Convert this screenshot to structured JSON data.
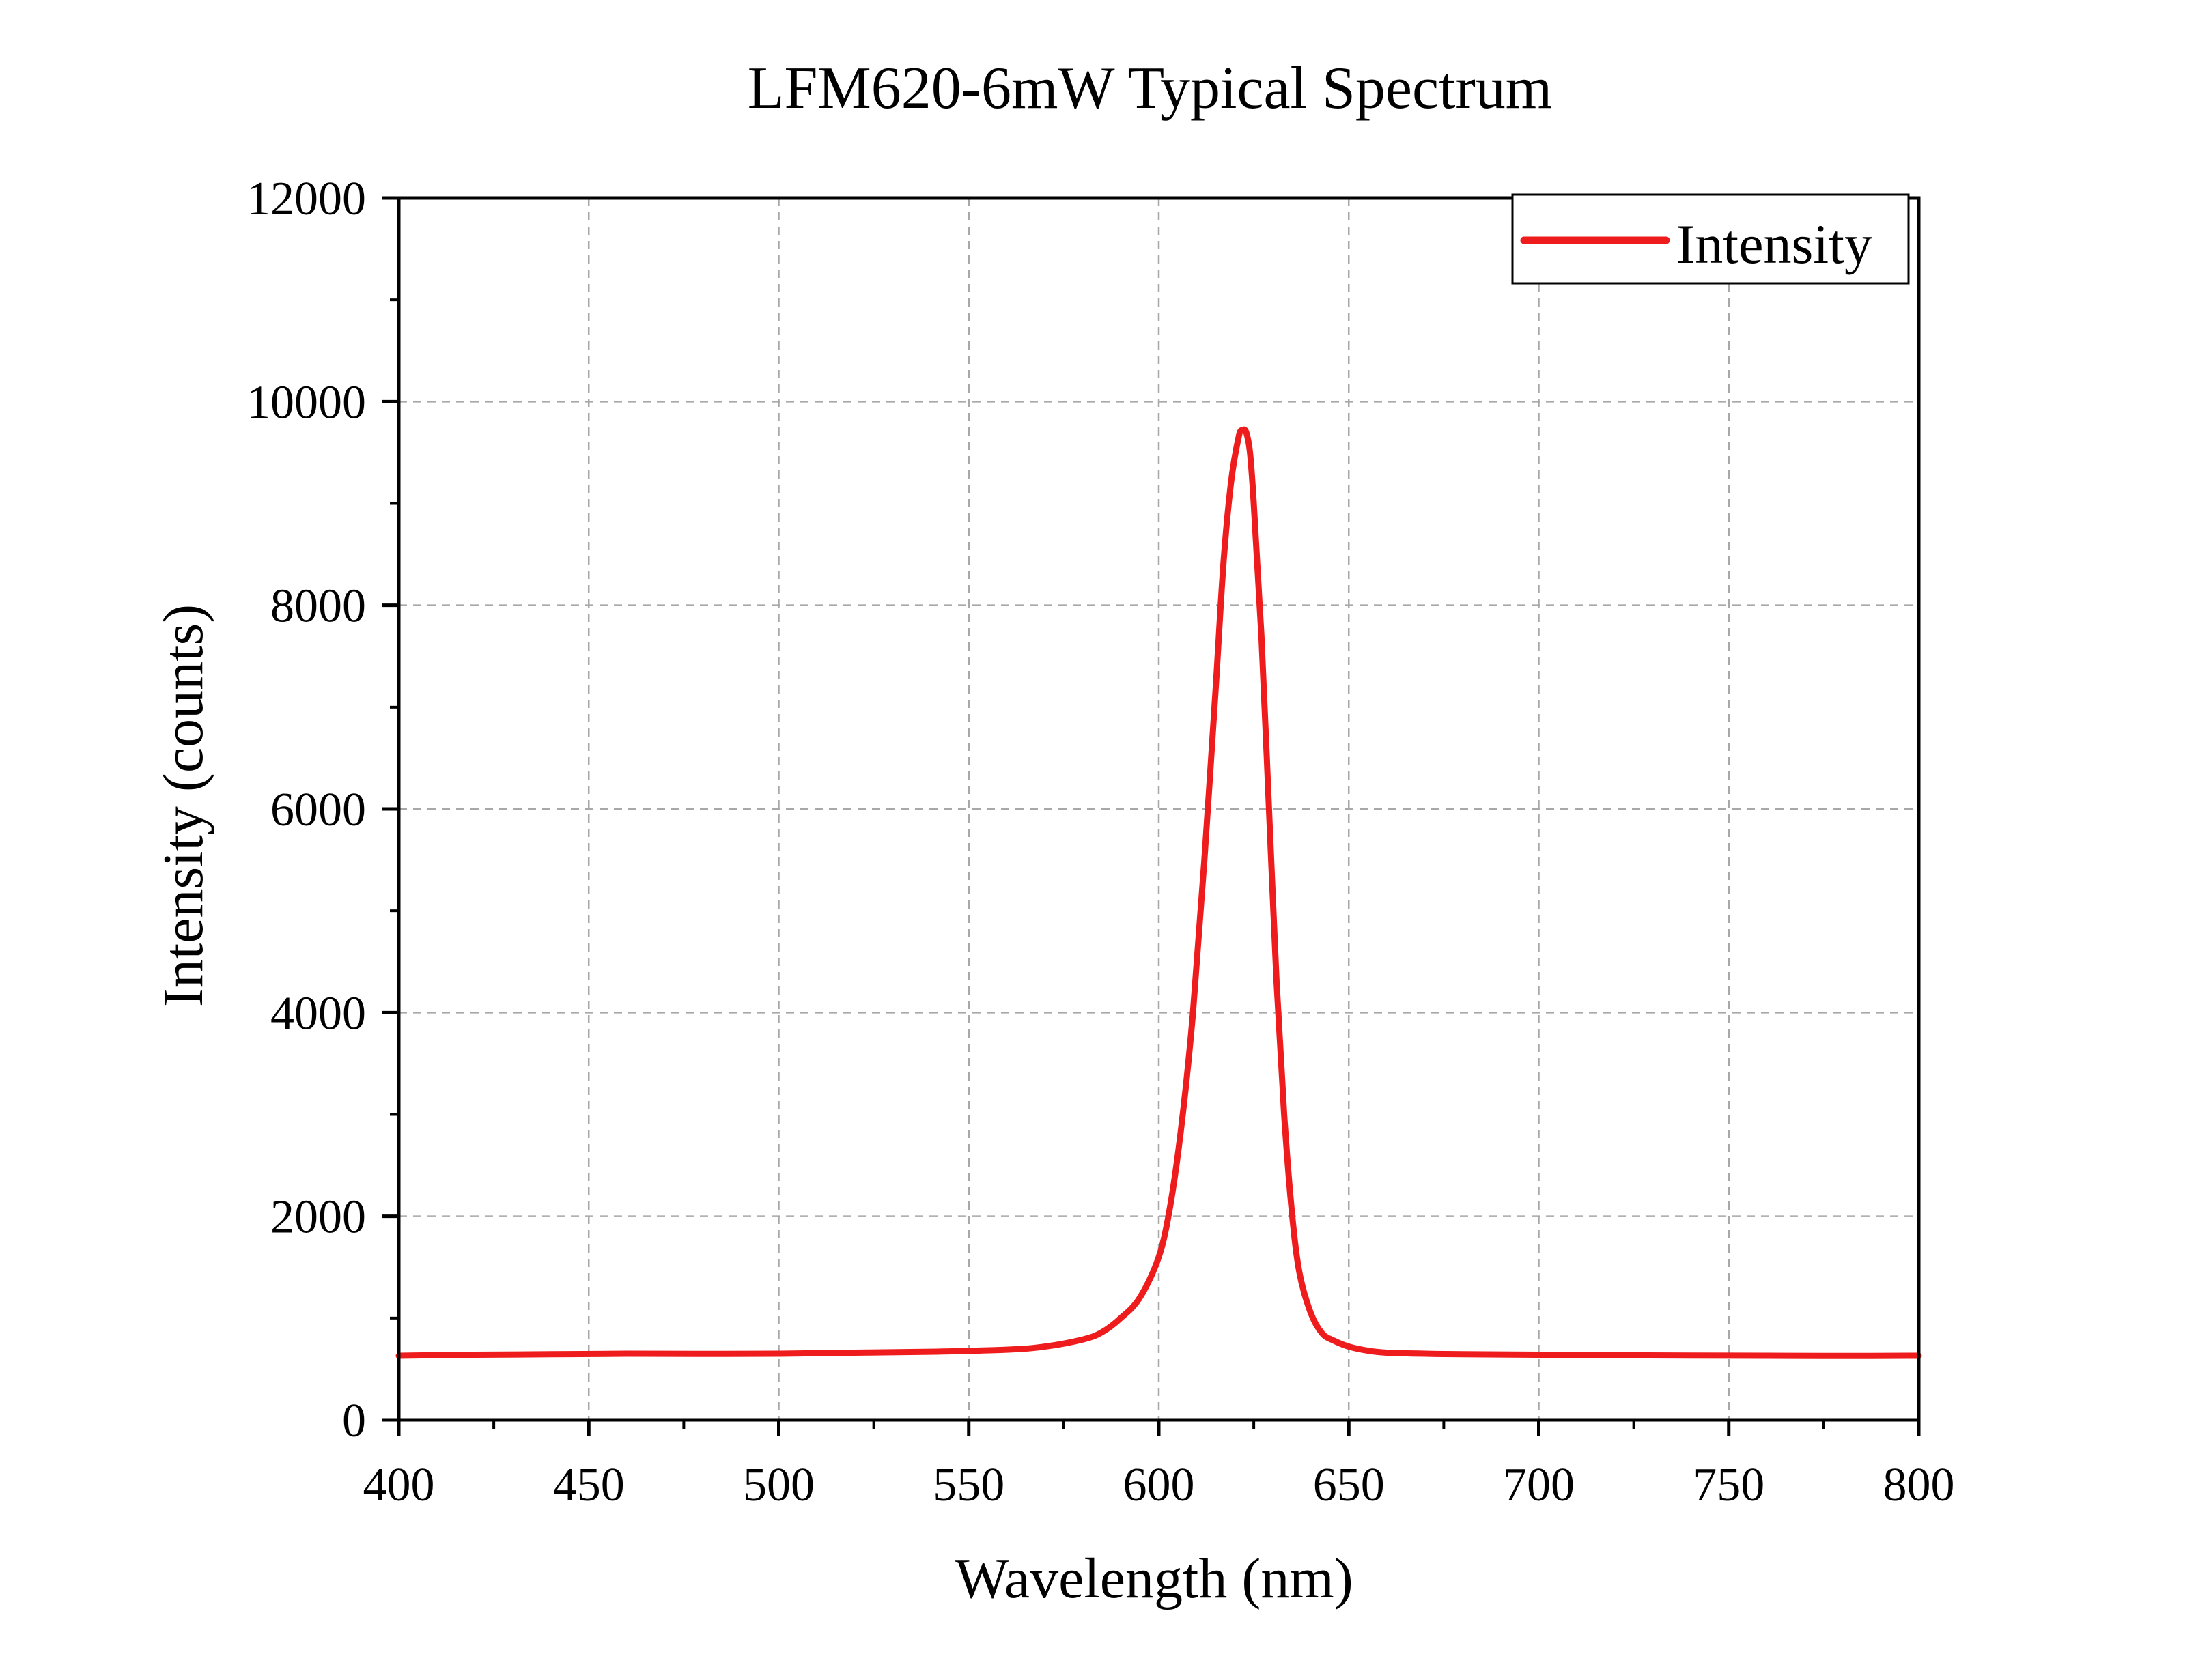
{
  "chart_data": {
    "type": "line",
    "title": "LFM620-6mW Typical Spectrum",
    "xlabel": "Wavelength (nm)",
    "ylabel": "Intensity (counts)",
    "xlim": [
      400,
      800
    ],
    "ylim": [
      0,
      12000
    ],
    "x_ticks": [
      "400",
      "450",
      "500",
      "550",
      "600",
      "650",
      "700",
      "750",
      "800"
    ],
    "y_ticks": [
      "0",
      "2000",
      "4000",
      "6000",
      "8000",
      "10000",
      "12000"
    ],
    "grid": true,
    "legend_position": "top-right",
    "series": [
      {
        "name": "Intensity",
        "color": "#ee1c1c",
        "x": [
          400,
          420,
          440,
          460,
          480,
          500,
          520,
          540,
          560,
          570,
          580,
          585,
          590,
          595,
          600,
          603,
          606,
          609,
          612,
          615,
          617,
          619,
          621,
          622,
          623,
          624,
          625,
          627,
          629,
          631,
          633,
          635,
          637,
          640,
          643,
          646,
          650,
          655,
          660,
          670,
          680,
          700,
          720,
          740,
          760,
          780,
          800
        ],
        "y": [
          630,
          640,
          645,
          650,
          648,
          650,
          660,
          670,
          690,
          720,
          790,
          860,
          1000,
          1200,
          1600,
          2100,
          2900,
          4000,
          5500,
          7200,
          8400,
          9200,
          9650,
          9720,
          9700,
          9500,
          9000,
          7700,
          6000,
          4300,
          3000,
          2050,
          1450,
          1050,
          850,
          780,
          720,
          680,
          660,
          650,
          645,
          640,
          635,
          632,
          630,
          628,
          630
        ]
      }
    ]
  }
}
